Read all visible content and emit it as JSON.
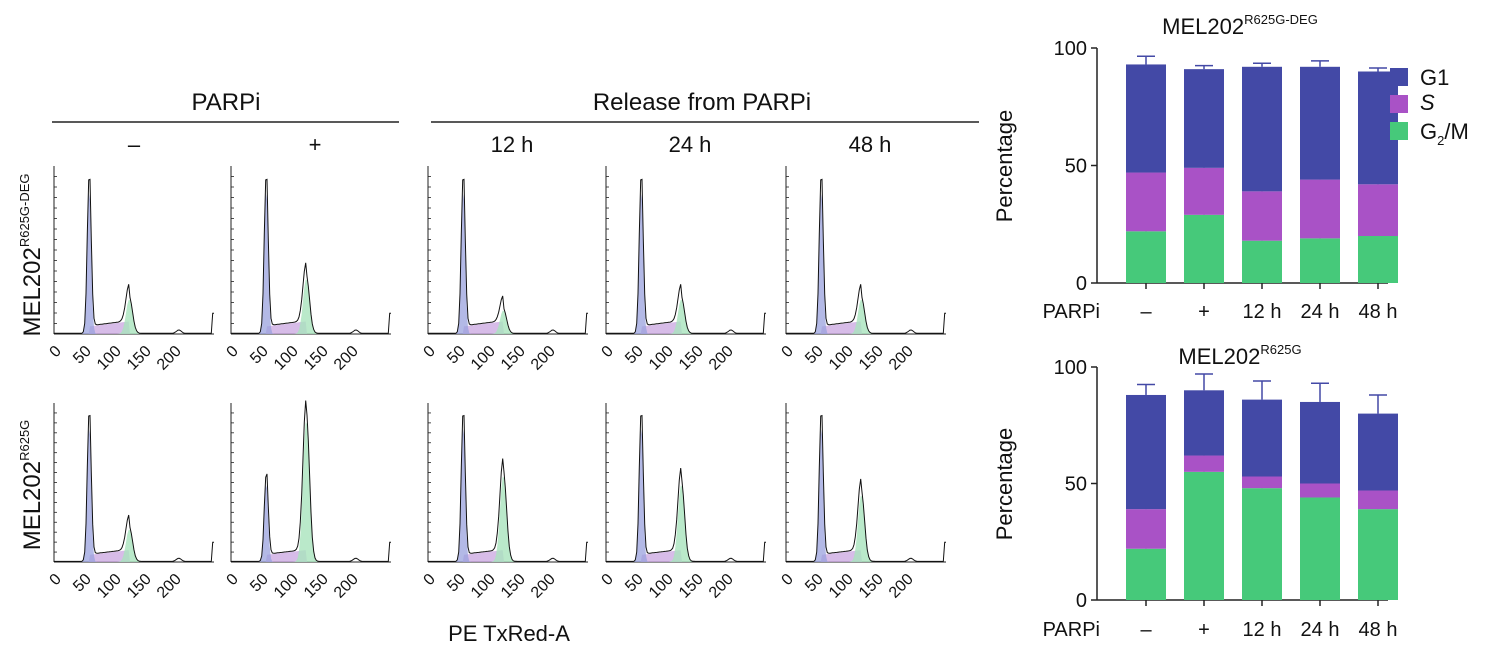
{
  "flow": {
    "header_parpi": "PARPi",
    "header_release": "Release from PARPi",
    "columns": [
      "–",
      "+",
      "12 h",
      "24 h",
      "48 h"
    ],
    "row_labels": [
      {
        "main": "MEL202",
        "sup": "R625G-DEG"
      },
      {
        "main": "MEL202",
        "sup": "R625G"
      }
    ],
    "x_ticks": [
      "0",
      "50",
      "100",
      "150",
      "200"
    ],
    "xlabel": "PE TxRed-A",
    "histograms": [
      [
        {
          "g1": 0.95,
          "g2": 0.22
        },
        {
          "g1": 0.95,
          "g2": 0.35
        },
        {
          "g1": 0.95,
          "g2": 0.15
        },
        {
          "g1": 0.95,
          "g2": 0.22
        },
        {
          "g1": 0.95,
          "g2": 0.22
        }
      ],
      [
        {
          "g1": 0.95,
          "g2": 0.22
        },
        {
          "g1": 0.55,
          "g2": 0.95
        },
        {
          "g1": 0.95,
          "g2": 0.58
        },
        {
          "g1": 0.95,
          "g2": 0.52
        },
        {
          "g1": 0.95,
          "g2": 0.45
        }
      ]
    ]
  },
  "legend": [
    {
      "key": "G1",
      "label": "G1",
      "color": "#4349a6"
    },
    {
      "key": "S",
      "label": "S",
      "color": "#a952c6"
    },
    {
      "key": "G2M",
      "label_main": "G",
      "label_sub": "2",
      "label_rest": "/M",
      "color": "#46c97a"
    }
  ],
  "chart_data": [
    {
      "type": "bar",
      "title_main": "MEL202",
      "title_sup": "R625G-DEG",
      "stacked": true,
      "row_label": "PARPi",
      "categories": [
        "–",
        "+",
        "12 h",
        "24 h",
        "48 h"
      ],
      "ylabel": "Percentage",
      "ylim": [
        0,
        100
      ],
      "yticks": [
        "0",
        "50",
        "100"
      ],
      "series": [
        {
          "name": "G2/M",
          "values": [
            22,
            29,
            18,
            19,
            20
          ],
          "err": [
            1,
            1,
            1,
            1,
            0.5
          ]
        },
        {
          "name": "S",
          "values": [
            25,
            20,
            21,
            25,
            22
          ],
          "err": [
            2,
            1,
            1,
            1.5,
            2
          ]
        },
        {
          "name": "G1",
          "values": [
            46,
            42,
            53,
            48,
            48
          ],
          "err": [
            3.5,
            1.5,
            1.5,
            2.5,
            1.5
          ]
        }
      ]
    },
    {
      "type": "bar",
      "title_main": "MEL202",
      "title_sup": "R625G",
      "stacked": true,
      "row_label": "PARPi",
      "categories": [
        "–",
        "+",
        "12 h",
        "24 h",
        "48 h"
      ],
      "ylabel": "Percentage",
      "ylim": [
        0,
        100
      ],
      "yticks": [
        "0",
        "50",
        "100"
      ],
      "series": [
        {
          "name": "G2/M",
          "values": [
            22,
            55,
            48,
            44,
            39
          ],
          "err": [
            1.5,
            12,
            9,
            11,
            5
          ]
        },
        {
          "name": "S",
          "values": [
            17,
            7,
            5,
            6,
            8
          ],
          "err": [
            2,
            0,
            0,
            0,
            2
          ]
        },
        {
          "name": "G1",
          "values": [
            49,
            28,
            33,
            35,
            33
          ],
          "err": [
            4.5,
            7,
            8,
            8,
            8
          ]
        }
      ]
    }
  ]
}
